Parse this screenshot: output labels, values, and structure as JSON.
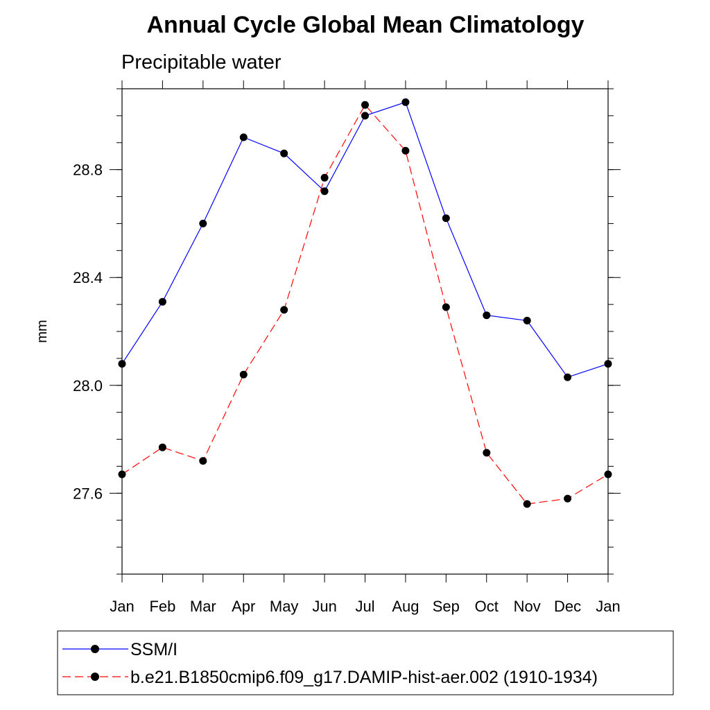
{
  "chart_data": {
    "type": "line",
    "title": "Annual Cycle Global Mean Climatology",
    "subtitle": "Precipitable water",
    "ylabel": "mm",
    "xlabel": "",
    "categories": [
      "Jan",
      "Feb",
      "Mar",
      "Apr",
      "May",
      "Jun",
      "Jul",
      "Aug",
      "Sep",
      "Oct",
      "Nov",
      "Dec",
      "Jan"
    ],
    "ylim": [
      27.3,
      29.1
    ],
    "yticks": [
      "27.6",
      "28.0",
      "28.4",
      "28.8"
    ],
    "ytick_values": [
      27.6,
      28.0,
      28.4,
      28.8
    ],
    "series": [
      {
        "name": "SSM/I",
        "color": "#0000ff",
        "dash": "solid",
        "values": [
          28.08,
          28.31,
          28.6,
          28.92,
          28.86,
          28.72,
          29.0,
          29.05,
          28.62,
          28.26,
          28.24,
          28.03,
          28.08
        ]
      },
      {
        "name": "b.e21.B1850cmip6.f09_g17.DAMIP-hist-aer.002 (1910-1934)",
        "color": "#ff0000",
        "dash": "dashed",
        "values": [
          27.67,
          27.77,
          27.72,
          28.04,
          28.28,
          28.77,
          29.04,
          28.87,
          28.29,
          27.75,
          27.56,
          27.58,
          27.67
        ]
      }
    ]
  }
}
